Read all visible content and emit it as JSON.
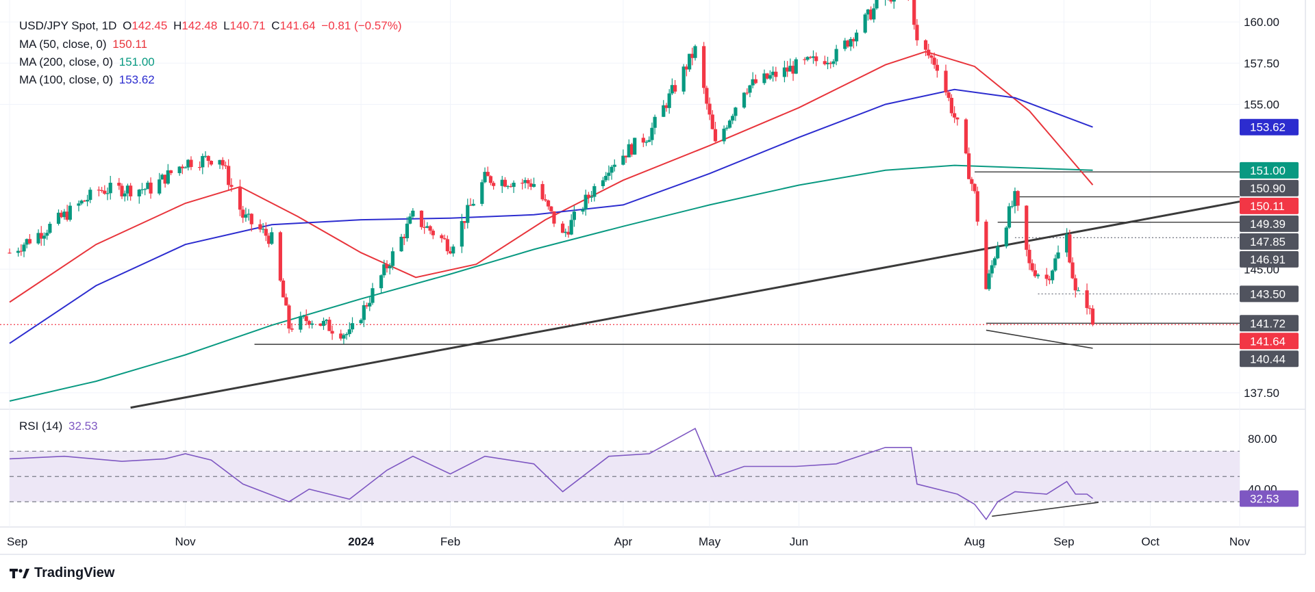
{
  "header": {
    "symbol": "USD/JPY Spot, 1D",
    "open_label": "O",
    "open": "142.45",
    "high_label": "H",
    "high": "142.48",
    "low_label": "L",
    "low": "140.71",
    "close_label": "C",
    "close": "141.64",
    "change": "−0.81 (−0.57%)"
  },
  "ma_legend": [
    {
      "label": "MA (50, close, 0)",
      "value": "150.11",
      "color": "#e8343b"
    },
    {
      "label": "MA (200, close, 0)",
      "value": "151.00",
      "color": "#089981"
    },
    {
      "label": "MA (100, close, 0)",
      "value": "153.62",
      "color": "#2c2ccf"
    }
  ],
  "rsi_legend": {
    "label": "RSI (14)",
    "value": "32.53",
    "color": "#7e57c2"
  },
  "brand": "TradingView",
  "colors": {
    "up": "#089981",
    "down": "#f23645",
    "line": "#3a3a3a",
    "rsi_band": "#ede7f6"
  },
  "chart_data": [
    {
      "type": "candlestick",
      "title": "USD/JPY Spot, 1D",
      "x_labels": [
        "Sep",
        "Nov",
        "2024",
        "Feb",
        "Apr",
        "May",
        "Jun",
        "Aug",
        "Sep",
        "Oct",
        "Nov"
      ],
      "y_ticks": [
        "160.00",
        "157.50",
        "155.00",
        "145.00",
        "137.50"
      ],
      "ylim": [
        136.5,
        161.0
      ],
      "grid": true,
      "anchors": [
        [
          "2023-09-01",
          146.0
        ],
        [
          "2023-09-15",
          147.6
        ],
        [
          "2023-10-02",
          149.8
        ],
        [
          "2023-10-20",
          149.9
        ],
        [
          "2023-11-01",
          151.5
        ],
        [
          "2023-11-13",
          151.8
        ],
        [
          "2023-11-21",
          148.2
        ],
        [
          "2023-12-01",
          146.8
        ],
        [
          "2023-12-07",
          141.5
        ],
        [
          "2023-12-14",
          142.0
        ],
        [
          "2023-12-28",
          141.0
        ],
        [
          "2024-01-10",
          145.2
        ],
        [
          "2024-01-19",
          148.2
        ],
        [
          "2024-02-01",
          146.4
        ],
        [
          "2024-02-13",
          150.5
        ],
        [
          "2024-03-01",
          150.2
        ],
        [
          "2024-03-11",
          147.0
        ],
        [
          "2024-03-27",
          151.3
        ],
        [
          "2024-04-10",
          153.2
        ],
        [
          "2024-04-26",
          158.3
        ],
        [
          "2024-05-03",
          152.5
        ],
        [
          "2024-05-13",
          156.0
        ],
        [
          "2024-05-31",
          157.3
        ],
        [
          "2024-06-14",
          158.0
        ],
        [
          "2024-07-01",
          161.6
        ],
        [
          "2024-07-10",
          161.6
        ],
        [
          "2024-07-12",
          158.7
        ],
        [
          "2024-07-19",
          157.4
        ],
        [
          "2024-07-26",
          153.7
        ],
        [
          "2024-08-01",
          149.5
        ],
        [
          "2024-08-05",
          143.8
        ],
        [
          "2024-08-09",
          146.6
        ],
        [
          "2024-08-15",
          149.3
        ],
        [
          "2024-08-20",
          145.2
        ],
        [
          "2024-08-26",
          144.4
        ],
        [
          "2024-09-02",
          147.0
        ],
        [
          "2024-09-05",
          143.5
        ],
        [
          "2024-09-09",
          143.0
        ],
        [
          "2024-09-11",
          141.64
        ]
      ],
      "moving_averages": [
        {
          "name": "MA (50, close, 0)",
          "color": "#e8343b",
          "points": [
            [
              "2023-09-01",
              143.0
            ],
            [
              "2023-10-01",
              146.5
            ],
            [
              "2023-11-01",
              149.0
            ],
            [
              "2023-11-20",
              150.0
            ],
            [
              "2023-12-10",
              148.2
            ],
            [
              "2024-01-01",
              146.0
            ],
            [
              "2024-01-20",
              144.5
            ],
            [
              "2024-02-10",
              145.3
            ],
            [
              "2024-03-05",
              148.0
            ],
            [
              "2024-04-01",
              150.4
            ],
            [
              "2024-05-01",
              152.5
            ],
            [
              "2024-06-01",
              154.8
            ],
            [
              "2024-07-01",
              157.4
            ],
            [
              "2024-07-15",
              158.2
            ],
            [
              "2024-08-01",
              157.3
            ],
            [
              "2024-08-20",
              154.6
            ],
            [
              "2024-09-11",
              150.11
            ]
          ]
        },
        {
          "name": "MA (100, close, 0)",
          "color": "#2c2ccf",
          "points": [
            [
              "2023-09-01",
              140.5
            ],
            [
              "2023-10-01",
              144.0
            ],
            [
              "2023-11-01",
              146.5
            ],
            [
              "2023-12-01",
              147.7
            ],
            [
              "2024-01-01",
              148.0
            ],
            [
              "2024-02-01",
              148.1
            ],
            [
              "2024-03-01",
              148.3
            ],
            [
              "2024-04-01",
              148.9
            ],
            [
              "2024-05-01",
              150.8
            ],
            [
              "2024-06-01",
              153.0
            ],
            [
              "2024-07-01",
              155.0
            ],
            [
              "2024-07-25",
              155.9
            ],
            [
              "2024-08-15",
              155.4
            ],
            [
              "2024-09-11",
              153.62
            ]
          ]
        },
        {
          "name": "MA (200, close, 0)",
          "color": "#089981",
          "points": [
            [
              "2023-09-01",
              137.0
            ],
            [
              "2023-10-01",
              138.2
            ],
            [
              "2023-11-01",
              139.8
            ],
            [
              "2023-12-01",
              141.6
            ],
            [
              "2024-01-01",
              143.2
            ],
            [
              "2024-02-01",
              144.7
            ],
            [
              "2024-03-01",
              146.2
            ],
            [
              "2024-04-01",
              147.6
            ],
            [
              "2024-05-01",
              148.9
            ],
            [
              "2024-06-01",
              150.1
            ],
            [
              "2024-07-01",
              151.0
            ],
            [
              "2024-07-25",
              151.3
            ],
            [
              "2024-09-11",
              151.0
            ]
          ]
        }
      ],
      "trendline": {
        "from": [
          "2023-10-13",
          136.6
        ],
        "to": [
          "2024-11-01",
          149.1
        ]
      },
      "divergence_line": {
        "from": [
          "2024-08-05",
          141.3
        ],
        "to": [
          "2024-09-11",
          140.2
        ]
      },
      "levels": [
        {
          "value": "150.90",
          "from": "2024-08-01",
          "style": "solid"
        },
        {
          "value": "149.39",
          "from": "2024-08-15",
          "style": "solid"
        },
        {
          "value": "147.85",
          "from": "2024-08-09",
          "style": "solid"
        },
        {
          "value": "146.91",
          "from": "2024-08-15",
          "style": "dotted"
        },
        {
          "value": "143.50",
          "from": "2024-08-23",
          "style": "dotted"
        },
        {
          "value": "141.72",
          "from": "2024-08-05",
          "style": "solid"
        },
        {
          "value": "140.44",
          "from": "2023-11-25",
          "style": "solid"
        }
      ],
      "price_badges": [
        {
          "value": "153.62",
          "color": "#2c2ccf"
        },
        {
          "value": "151.00",
          "color": "#089981"
        },
        {
          "value": "150.90",
          "color": "#50535e"
        },
        {
          "value": "150.11",
          "color": "#f23645"
        },
        {
          "value": "149.39",
          "color": "#50535e"
        },
        {
          "value": "147.85",
          "color": "#50535e"
        },
        {
          "value": "146.91",
          "color": "#50535e"
        },
        {
          "value": "143.50",
          "color": "#50535e"
        },
        {
          "value": "141.72",
          "color": "#50535e"
        },
        {
          "value": "141.64",
          "color": "#f23645"
        },
        {
          "value": "140.44",
          "color": "#50535e"
        }
      ],
      "last_price": 141.64
    },
    {
      "type": "line",
      "title": "RSI (14)",
      "y_ticks": [
        "80.00",
        "40.00"
      ],
      "ylim": [
        10,
        100
      ],
      "band": [
        30,
        70
      ],
      "midline": 50,
      "last_value": "32.53",
      "points": [
        [
          "2023-09-01",
          64
        ],
        [
          "2023-09-20",
          66
        ],
        [
          "2023-10-10",
          62
        ],
        [
          "2023-10-25",
          64
        ],
        [
          "2023-11-01",
          68
        ],
        [
          "2023-11-10",
          63
        ],
        [
          "2023-11-21",
          44
        ],
        [
          "2023-12-07",
          30
        ],
        [
          "2023-12-14",
          40
        ],
        [
          "2023-12-28",
          32
        ],
        [
          "2024-01-10",
          55
        ],
        [
          "2024-01-19",
          66
        ],
        [
          "2024-02-01",
          52
        ],
        [
          "2024-02-13",
          66
        ],
        [
          "2024-03-01",
          60
        ],
        [
          "2024-03-11",
          38
        ],
        [
          "2024-03-27",
          66
        ],
        [
          "2024-04-10",
          68
        ],
        [
          "2024-04-26",
          88
        ],
        [
          "2024-05-03",
          50
        ],
        [
          "2024-05-13",
          58
        ],
        [
          "2024-05-31",
          58
        ],
        [
          "2024-06-14",
          60
        ],
        [
          "2024-07-01",
          73
        ],
        [
          "2024-07-10",
          73
        ],
        [
          "2024-07-12",
          44
        ],
        [
          "2024-07-26",
          36
        ],
        [
          "2024-08-01",
          28
        ],
        [
          "2024-08-05",
          16
        ],
        [
          "2024-08-09",
          30
        ],
        [
          "2024-08-15",
          38
        ],
        [
          "2024-08-26",
          36
        ],
        [
          "2024-09-02",
          46
        ],
        [
          "2024-09-05",
          36
        ],
        [
          "2024-09-09",
          36
        ],
        [
          "2024-09-11",
          32.53
        ]
      ],
      "divergence_line": {
        "from": [
          "2024-08-07",
          18.5
        ],
        "to": [
          "2024-09-13",
          29.5
        ]
      }
    }
  ]
}
